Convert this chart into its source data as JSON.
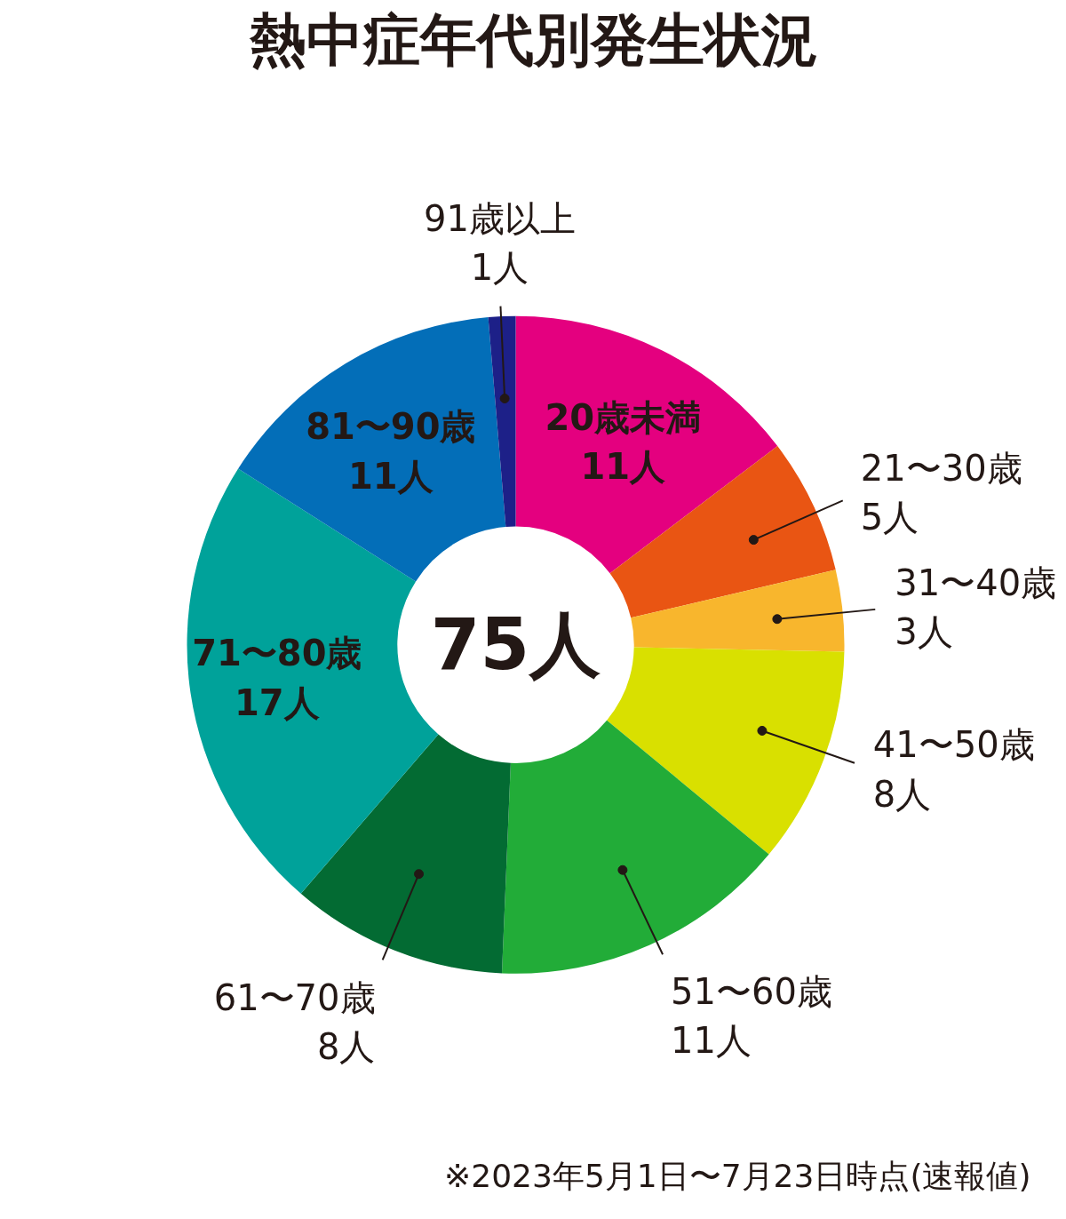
{
  "chart_data": {
    "type": "donut",
    "title": "熱中症年代別発生状況",
    "categories": [
      "20歳未満",
      "21〜30歳",
      "31〜40歳",
      "41〜50歳",
      "51〜60歳",
      "61〜70歳",
      "71〜80歳",
      "81〜90歳",
      "91歳以上"
    ],
    "values": [
      11,
      5,
      3,
      8,
      11,
      8,
      17,
      11,
      1
    ],
    "value_labels": [
      "11人",
      "5人",
      "3人",
      "8人",
      "11人",
      "8人",
      "17人",
      "11人",
      "1人"
    ],
    "colors": [
      "#e4007f",
      "#e95513",
      "#f8b62d",
      "#d9e000",
      "#22ac38",
      "#036b33",
      "#00a29a",
      "#036eb8",
      "#1d2088"
    ],
    "annotations": [
      "75人",
      "※2023年5月1日〜7月23日時点(速報値)"
    ]
  }
}
